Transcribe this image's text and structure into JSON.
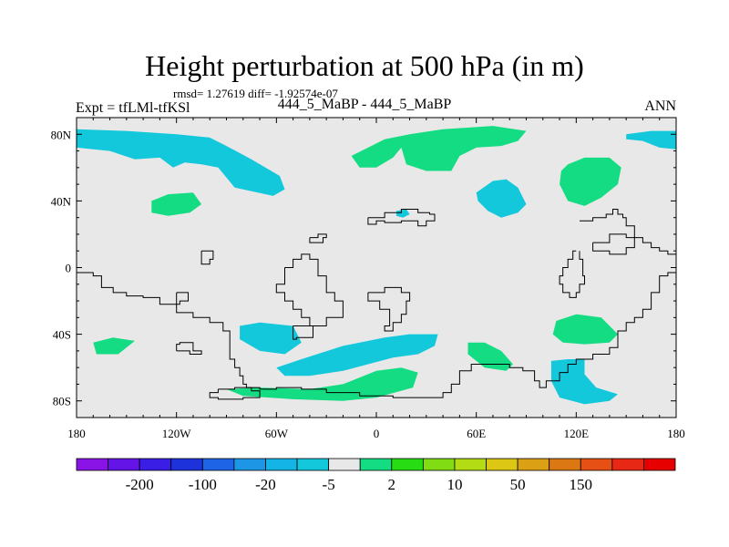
{
  "chart_data": {
    "type": "map-contour",
    "title": "Height perturbation at 500 hPa (in m)",
    "stats_line": "rmsd= 1.27619 diff= -1.92574e-07",
    "left_label": "Expt = tfLMl-tfKSl",
    "center_label": "444_5_MaBP - 444_5_MaBP",
    "right_label": "ANN",
    "x_ticks": [
      {
        "value": -180,
        "label": "180"
      },
      {
        "value": -120,
        "label": "120W"
      },
      {
        "value": -60,
        "label": "60W"
      },
      {
        "value": 0,
        "label": "0"
      },
      {
        "value": 60,
        "label": "60E"
      },
      {
        "value": 120,
        "label": "120E"
      },
      {
        "value": 180,
        "label": "180"
      }
    ],
    "y_ticks": [
      {
        "value": 80,
        "label": "80N"
      },
      {
        "value": 40,
        "label": "40N"
      },
      {
        "value": 0,
        "label": "0"
      },
      {
        "value": -40,
        "label": "40S"
      },
      {
        "value": -80,
        "label": "80S"
      }
    ],
    "xlim": [
      -180,
      180
    ],
    "ylim": [
      -90,
      90
    ],
    "colorbar": {
      "colors": [
        "#8a14e6",
        "#6414e6",
        "#3a1ee6",
        "#1e32dc",
        "#1e64e6",
        "#1e96e6",
        "#14b4e6",
        "#14c8dc",
        "#e8e8e8",
        "#14dc82",
        "#28dc14",
        "#82dc14",
        "#b4dc14",
        "#dcc814",
        "#dca014",
        "#dc7814",
        "#e65014",
        "#e62814",
        "#e60000"
      ],
      "labels": [
        {
          "after_index": 1,
          "text": "-200"
        },
        {
          "after_index": 3,
          "text": "-100"
        },
        {
          "after_index": 5,
          "text": "-20"
        },
        {
          "after_index": 7,
          "text": "-5"
        },
        {
          "after_index": 9,
          "text": "2"
        },
        {
          "after_index": 11,
          "text": "10"
        },
        {
          "after_index": 13,
          "text": "50"
        },
        {
          "after_index": 15,
          "text": "150"
        }
      ]
    },
    "neutral_color": "#e8e8e8",
    "regions": [
      {
        "name": "nw-pacific-low",
        "sign": "neg",
        "polygon": [
          [
            -180,
            83
          ],
          [
            -150,
            82
          ],
          [
            -120,
            80
          ],
          [
            -100,
            78
          ],
          [
            -90,
            73
          ],
          [
            -75,
            65
          ],
          [
            -58,
            55
          ],
          [
            -55,
            47
          ],
          [
            -62,
            43
          ],
          [
            -85,
            48
          ],
          [
            -95,
            60
          ],
          [
            -105,
            62
          ],
          [
            -115,
            63
          ],
          [
            -122,
            60
          ],
          [
            -130,
            66
          ],
          [
            -145,
            65
          ],
          [
            -160,
            70
          ],
          [
            -180,
            72
          ]
        ]
      },
      {
        "name": "ne-pacific-low",
        "sign": "neg",
        "polygon": [
          [
            150,
            80
          ],
          [
            165,
            82
          ],
          [
            180,
            82
          ],
          [
            180,
            71
          ],
          [
            170,
            72
          ],
          [
            160,
            76
          ],
          [
            150,
            77
          ]
        ]
      },
      {
        "name": "asia-low",
        "sign": "neg",
        "polygon": [
          [
            60,
            45
          ],
          [
            70,
            52
          ],
          [
            78,
            53
          ],
          [
            85,
            48
          ],
          [
            90,
            38
          ],
          [
            85,
            33
          ],
          [
            75,
            30
          ],
          [
            67,
            34
          ],
          [
            61,
            40
          ]
        ]
      },
      {
        "name": "mediterranean-low",
        "sign": "neg",
        "polygon": [
          [
            12,
            34
          ],
          [
            18,
            35
          ],
          [
            20,
            32
          ],
          [
            16,
            30
          ],
          [
            12,
            31
          ]
        ]
      },
      {
        "name": "south-atlantic-low",
        "sign": "neg",
        "polygon": [
          [
            -82,
            -35
          ],
          [
            -70,
            -33
          ],
          [
            -50,
            -35
          ],
          [
            -45,
            -45
          ],
          [
            -55,
            -52
          ],
          [
            -70,
            -50
          ],
          [
            -82,
            -43
          ]
        ]
      },
      {
        "name": "southern-ocean-low",
        "sign": "neg",
        "polygon": [
          [
            -60,
            -60
          ],
          [
            -45,
            -55
          ],
          [
            -20,
            -47
          ],
          [
            5,
            -42
          ],
          [
            20,
            -40
          ],
          [
            37,
            -40
          ],
          [
            35,
            -47
          ],
          [
            25,
            -52
          ],
          [
            10,
            -54
          ],
          [
            -5,
            -58
          ],
          [
            -20,
            -62
          ],
          [
            -40,
            -65
          ],
          [
            -55,
            -65
          ]
        ]
      },
      {
        "name": "australia-low",
        "sign": "neg",
        "polygon": [
          [
            105,
            -56
          ],
          [
            115,
            -55
          ],
          [
            125,
            -55
          ],
          [
            125,
            -64
          ],
          [
            132,
            -72
          ],
          [
            145,
            -76
          ],
          [
            140,
            -80
          ],
          [
            125,
            -82
          ],
          [
            110,
            -78
          ],
          [
            105,
            -68
          ]
        ]
      },
      {
        "name": "arctic-high",
        "sign": "pos",
        "polygon": [
          [
            20,
            80
          ],
          [
            40,
            83
          ],
          [
            70,
            85
          ],
          [
            90,
            82
          ],
          [
            85,
            76
          ],
          [
            75,
            73
          ],
          [
            60,
            72
          ],
          [
            50,
            67
          ],
          [
            45,
            58
          ],
          [
            30,
            58
          ],
          [
            18,
            62
          ],
          [
            15,
            72
          ],
          [
            10,
            66
          ],
          [
            0,
            60
          ],
          [
            -10,
            60
          ],
          [
            -15,
            67
          ],
          [
            -5,
            72
          ],
          [
            5,
            77
          ]
        ]
      },
      {
        "name": "russia-high",
        "sign": "pos",
        "polygon": [
          [
            115,
            62
          ],
          [
            125,
            66
          ],
          [
            140,
            66
          ],
          [
            147,
            60
          ],
          [
            145,
            50
          ],
          [
            135,
            42
          ],
          [
            125,
            37
          ],
          [
            115,
            40
          ],
          [
            110,
            50
          ],
          [
            111,
            58
          ]
        ]
      },
      {
        "name": "n-pacific-high",
        "sign": "pos",
        "polygon": [
          [
            -135,
            40
          ],
          [
            -125,
            44
          ],
          [
            -110,
            45
          ],
          [
            -105,
            38
          ],
          [
            -112,
            33
          ],
          [
            -125,
            31
          ],
          [
            -135,
            33
          ]
        ]
      },
      {
        "name": "s-pacific-high",
        "sign": "pos",
        "polygon": [
          [
            -170,
            -45
          ],
          [
            -158,
            -42
          ],
          [
            -145,
            -44
          ],
          [
            -155,
            -52
          ],
          [
            -168,
            -52
          ]
        ]
      },
      {
        "name": "s-indian-high",
        "sign": "pos",
        "polygon": [
          [
            55,
            -45
          ],
          [
            65,
            -45
          ],
          [
            75,
            -50
          ],
          [
            82,
            -58
          ],
          [
            78,
            -62
          ],
          [
            65,
            -60
          ],
          [
            55,
            -52
          ]
        ]
      },
      {
        "name": "australia-high",
        "sign": "pos",
        "polygon": [
          [
            108,
            -32
          ],
          [
            120,
            -28
          ],
          [
            135,
            -30
          ],
          [
            145,
            -40
          ],
          [
            140,
            -45
          ],
          [
            125,
            -46
          ],
          [
            112,
            -45
          ],
          [
            106,
            -40
          ]
        ]
      },
      {
        "name": "antarctic-high",
        "sign": "pos",
        "polygon": [
          [
            -90,
            -73
          ],
          [
            -70,
            -72
          ],
          [
            -40,
            -73
          ],
          [
            -20,
            -70
          ],
          [
            0,
            -62
          ],
          [
            15,
            -60
          ],
          [
            25,
            -63
          ],
          [
            22,
            -72
          ],
          [
            0,
            -78
          ],
          [
            -20,
            -80
          ],
          [
            -50,
            -79
          ],
          [
            -80,
            -77
          ]
        ]
      }
    ],
    "coastlines": [
      [
        [
          -180,
          -3
        ],
        [
          -170,
          -5
        ],
        [
          -165,
          -12
        ],
        [
          -158,
          -15
        ],
        [
          -150,
          -17
        ],
        [
          -140,
          -18
        ],
        [
          -130,
          -22
        ],
        [
          -120,
          -27
        ],
        [
          -110,
          -30
        ],
        [
          -100,
          -33
        ],
        [
          -92,
          -38
        ],
        [
          -88,
          -45
        ],
        [
          -88,
          -55
        ],
        [
          -85,
          -60
        ],
        [
          -82,
          -65
        ],
        [
          -80,
          -70
        ],
        [
          -78,
          -72
        ],
        [
          -70,
          -73
        ],
        [
          -60,
          -72
        ],
        [
          -45,
          -73
        ],
        [
          -30,
          -75
        ],
        [
          -10,
          -77
        ],
        [
          10,
          -78
        ],
        [
          30,
          -78
        ],
        [
          40,
          -75
        ],
        [
          45,
          -70
        ],
        [
          50,
          -62
        ],
        [
          57,
          -58
        ],
        [
          72,
          -58
        ],
        [
          80,
          -60
        ],
        [
          88,
          -62
        ],
        [
          95,
          -68
        ],
        [
          98,
          -72
        ],
        [
          102,
          -68
        ],
        [
          110,
          -63
        ],
        [
          115,
          -58
        ],
        [
          120,
          -55
        ],
        [
          130,
          -52
        ],
        [
          140,
          -48
        ],
        [
          145,
          -38
        ],
        [
          150,
          -33
        ],
        [
          155,
          -30
        ],
        [
          160,
          -25
        ],
        [
          165,
          -15
        ],
        [
          170,
          -5
        ],
        [
          175,
          -3
        ],
        [
          180,
          -3
        ]
      ],
      [
        [
          -95,
          -73
        ],
        [
          -85,
          -72
        ],
        [
          -75,
          -74
        ],
        [
          -70,
          -78
        ],
        [
          -80,
          -79
        ],
        [
          -95,
          -78
        ],
        [
          -100,
          -75
        ],
        [
          -95,
          -73
        ]
      ],
      [
        [
          -55,
          0
        ],
        [
          -50,
          5
        ],
        [
          -45,
          8
        ],
        [
          -40,
          5
        ],
        [
          -35,
          -5
        ],
        [
          -30,
          -15
        ],
        [
          -25,
          -20
        ],
        [
          -20,
          -30
        ],
        [
          -30,
          -35
        ],
        [
          -40,
          -30
        ],
        [
          -45,
          -25
        ],
        [
          -50,
          -20
        ],
        [
          -55,
          -15
        ],
        [
          -60,
          -10
        ],
        [
          -55,
          0
        ]
      ],
      [
        [
          -105,
          10
        ],
        [
          -100,
          10
        ],
        [
          -98,
          5
        ],
        [
          -100,
          2
        ],
        [
          -105,
          3
        ],
        [
          -105,
          10
        ]
      ],
      [
        [
          -120,
          -15
        ],
        [
          -115,
          -15
        ],
        [
          -113,
          -20
        ],
        [
          -118,
          -22
        ],
        [
          -120,
          -18
        ],
        [
          -120,
          -15
        ]
      ],
      [
        [
          -5,
          -15
        ],
        [
          5,
          -12
        ],
        [
          15,
          -15
        ],
        [
          20,
          -20
        ],
        [
          18,
          -28
        ],
        [
          15,
          -33
        ],
        [
          10,
          -38
        ],
        [
          5,
          -35
        ],
        [
          8,
          -25
        ],
        [
          2,
          -20
        ],
        [
          -5,
          -18
        ],
        [
          -5,
          -15
        ]
      ],
      [
        [
          -50,
          -35
        ],
        [
          -40,
          -35
        ],
        [
          -38,
          -42
        ],
        [
          -48,
          -43
        ],
        [
          -50,
          -35
        ]
      ],
      [
        [
          -5,
          30
        ],
        [
          5,
          33
        ],
        [
          15,
          35
        ],
        [
          25,
          33
        ],
        [
          32,
          32
        ],
        [
          35,
          28
        ],
        [
          30,
          25
        ],
        [
          25,
          28
        ],
        [
          15,
          27
        ],
        [
          5,
          28
        ],
        [
          0,
          26
        ],
        [
          -5,
          30
        ]
      ],
      [
        [
          122,
          28
        ],
        [
          130,
          30
        ],
        [
          138,
          32
        ],
        [
          142,
          35
        ],
        [
          145,
          32
        ],
        [
          148,
          30
        ],
        [
          150,
          25
        ],
        [
          155,
          18
        ],
        [
          160,
          15
        ],
        [
          165,
          12
        ],
        [
          170,
          10
        ],
        [
          175,
          8
        ],
        [
          180,
          0
        ]
      ],
      [
        [
          120,
          10
        ],
        [
          118,
          5
        ],
        [
          115,
          0
        ],
        [
          112,
          -5
        ],
        [
          110,
          -10
        ],
        [
          112,
          -15
        ],
        [
          116,
          -18
        ],
        [
          120,
          -15
        ],
        [
          122,
          -10
        ],
        [
          125,
          -5
        ],
        [
          124,
          5
        ],
        [
          122,
          10
        ]
      ],
      [
        [
          130,
          15
        ],
        [
          140,
          20
        ],
        [
          150,
          18
        ],
        [
          155,
          12
        ],
        [
          150,
          8
        ],
        [
          140,
          10
        ],
        [
          130,
          15
        ]
      ],
      [
        [
          -40,
          18
        ],
        [
          -35,
          20
        ],
        [
          -30,
          18
        ],
        [
          -32,
          15
        ],
        [
          -38,
          15
        ],
        [
          -40,
          18
        ]
      ],
      [
        [
          -120,
          -50
        ],
        [
          -112,
          -52
        ],
        [
          -105,
          -50
        ],
        [
          -110,
          -45
        ],
        [
          -118,
          -46
        ],
        [
          -120,
          -50
        ]
      ]
    ]
  }
}
